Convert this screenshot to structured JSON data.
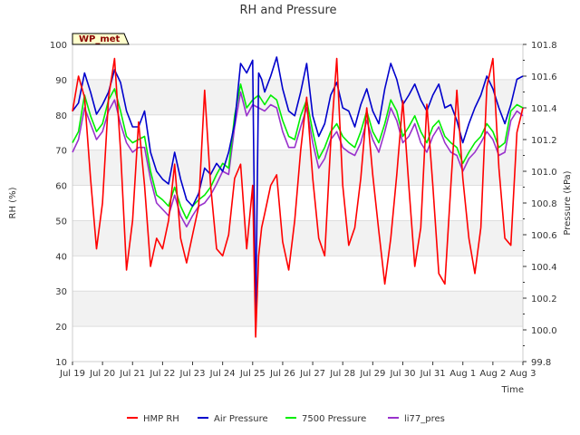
{
  "chart_data": {
    "type": "line",
    "title": "RH and Pressure",
    "xlabel": "Time",
    "ylabel": "RH (%)",
    "y2label": "Pressure (kPa)",
    "badge": "WP_met",
    "x_ticks": [
      "Jul 19",
      "Jul 20",
      "Jul 21",
      "Jul 22",
      "Jul 23",
      "Jul 24",
      "Jul 25",
      "Jul 26",
      "Jul 27",
      "Jul 28",
      "Jul 29",
      "Jul 30",
      "Jul 31",
      "Aug 1",
      "Aug 2",
      "Aug 3"
    ],
    "xlim": [
      0,
      15
    ],
    "ylim": [
      10,
      100
    ],
    "y_ticks": [
      10,
      20,
      30,
      40,
      50,
      60,
      70,
      80,
      90,
      100
    ],
    "y2lim": [
      99.8,
      101.8
    ],
    "y2_ticks": [
      99.8,
      100.0,
      100.2,
      100.4,
      100.6,
      100.8,
      101.0,
      101.2,
      101.4,
      101.6,
      101.8
    ],
    "bands": [
      [
        80,
        90
      ],
      [
        60,
        70
      ],
      [
        40,
        50
      ],
      [
        20,
        30
      ]
    ],
    "grid": true,
    "legend_position": "bottom",
    "colors": {
      "hmp_rh": "#ff0000",
      "air_pressure": "#0000cc",
      "p7500": "#00ee00",
      "li77": "#9932cc",
      "band": "#f2f2f2",
      "grid": "#dddddd",
      "badge_fill": "#ffffcc",
      "badge_text": "#8b0000"
    },
    "series": [
      {
        "name": "HMP RH",
        "color": "#ff0000",
        "axis": "left",
        "x": [
          0,
          0.2,
          0.4,
          0.6,
          0.8,
          1.0,
          1.2,
          1.4,
          1.6,
          1.8,
          2.0,
          2.2,
          2.4,
          2.6,
          2.8,
          3.0,
          3.2,
          3.4,
          3.6,
          3.8,
          4.0,
          4.2,
          4.4,
          4.6,
          4.8,
          5.0,
          5.2,
          5.4,
          5.6,
          5.8,
          6.0,
          6.1,
          6.2,
          6.3,
          6.4,
          6.6,
          6.8,
          7.0,
          7.2,
          7.4,
          7.6,
          7.8,
          8.0,
          8.2,
          8.4,
          8.6,
          8.8,
          9.0,
          9.2,
          9.4,
          9.6,
          9.8,
          10.0,
          10.2,
          10.4,
          10.6,
          10.8,
          11.0,
          11.2,
          11.4,
          11.6,
          11.8,
          12.0,
          12.2,
          12.4,
          12.6,
          12.8,
          13.0,
          13.2,
          13.4,
          13.6,
          13.8,
          14.0,
          14.2,
          14.4,
          14.6,
          14.8,
          15.0
        ],
        "y": [
          81,
          91,
          85,
          62,
          42,
          55,
          85,
          96,
          70,
          36,
          50,
          78,
          60,
          37,
          45,
          42,
          50,
          66,
          45,
          38,
          46,
          54,
          87,
          60,
          42,
          40,
          46,
          62,
          66,
          42,
          60,
          17,
          40,
          48,
          52,
          60,
          63,
          44,
          36,
          50,
          70,
          85,
          62,
          45,
          40,
          72,
          96,
          60,
          43,
          48,
          62,
          82,
          63,
          47,
          32,
          45,
          63,
          84,
          60,
          37,
          48,
          83,
          60,
          35,
          32,
          60,
          87,
          62,
          45,
          35,
          48,
          88,
          96,
          65,
          45,
          43,
          75,
          82
        ]
      },
      {
        "name": "Air Pressure",
        "color": "#0000cc",
        "axis": "right",
        "x": [
          0,
          0.2,
          0.4,
          0.6,
          0.8,
          1.0,
          1.2,
          1.4,
          1.6,
          1.8,
          2.0,
          2.2,
          2.4,
          2.6,
          2.8,
          3.0,
          3.2,
          3.4,
          3.6,
          3.8,
          4.0,
          4.2,
          4.4,
          4.6,
          4.8,
          5.0,
          5.2,
          5.4,
          5.6,
          5.8,
          6.0,
          6.1,
          6.2,
          6.3,
          6.4,
          6.6,
          6.8,
          7.0,
          7.2,
          7.4,
          7.6,
          7.8,
          8.0,
          8.2,
          8.4,
          8.6,
          8.8,
          9.0,
          9.2,
          9.4,
          9.6,
          9.8,
          10.0,
          10.2,
          10.4,
          10.6,
          10.8,
          11.0,
          11.2,
          11.4,
          11.6,
          11.8,
          12.0,
          12.2,
          12.4,
          12.6,
          12.8,
          13.0,
          13.2,
          13.4,
          13.6,
          13.8,
          14.0,
          14.2,
          14.4,
          14.6,
          14.8,
          15.0
        ],
        "y": [
          101.38,
          101.43,
          101.62,
          101.5,
          101.36,
          101.42,
          101.5,
          101.64,
          101.56,
          101.38,
          101.28,
          101.28,
          101.38,
          101.12,
          101.0,
          100.95,
          100.92,
          101.12,
          100.95,
          100.82,
          100.78,
          100.86,
          101.02,
          100.98,
          101.05,
          101.0,
          101.12,
          101.3,
          101.68,
          101.62,
          101.7,
          100.05,
          101.62,
          101.58,
          101.5,
          101.6,
          101.72,
          101.52,
          101.38,
          101.35,
          101.5,
          101.68,
          101.35,
          101.22,
          101.3,
          101.48,
          101.56,
          101.4,
          101.38,
          101.28,
          101.42,
          101.52,
          101.38,
          101.3,
          101.52,
          101.68,
          101.58,
          101.42,
          101.48,
          101.55,
          101.45,
          101.38,
          101.48,
          101.55,
          101.4,
          101.42,
          101.32,
          101.18,
          101.3,
          101.4,
          101.48,
          101.6,
          101.52,
          101.4,
          101.3,
          101.42,
          101.58,
          101.6
        ]
      },
      {
        "name": "7500 Pressure",
        "color": "#00ee00",
        "axis": "right",
        "x": [
          0,
          0.2,
          0.4,
          0.6,
          0.8,
          1.0,
          1.2,
          1.4,
          1.6,
          1.8,
          2.0,
          2.2,
          2.4,
          2.6,
          2.8,
          3.0,
          3.2,
          3.4,
          3.6,
          3.8,
          4.0,
          4.2,
          4.4,
          4.6,
          4.8,
          5.0,
          5.2,
          5.4,
          5.6,
          5.8,
          6.0,
          6.2,
          6.4,
          6.6,
          6.8,
          7.0,
          7.2,
          7.4,
          7.6,
          7.8,
          8.0,
          8.2,
          8.4,
          8.6,
          8.8,
          9.0,
          9.2,
          9.4,
          9.6,
          9.8,
          10.0,
          10.2,
          10.4,
          10.6,
          10.8,
          11.0,
          11.2,
          11.4,
          11.6,
          11.8,
          12.0,
          12.2,
          12.4,
          12.6,
          12.8,
          13.0,
          13.2,
          13.4,
          13.6,
          13.8,
          14.0,
          14.2,
          14.4,
          14.6,
          14.8,
          15.0
        ],
        "y": [
          101.18,
          101.25,
          101.48,
          101.35,
          101.25,
          101.3,
          101.45,
          101.52,
          101.38,
          101.22,
          101.18,
          101.2,
          101.22,
          101.0,
          100.85,
          100.82,
          100.78,
          100.9,
          100.78,
          100.7,
          100.78,
          100.82,
          100.85,
          100.9,
          100.98,
          101.05,
          101.02,
          101.35,
          101.55,
          101.4,
          101.45,
          101.48,
          101.42,
          101.48,
          101.45,
          101.32,
          101.22,
          101.2,
          101.35,
          101.45,
          101.25,
          101.08,
          101.15,
          101.25,
          101.3,
          101.22,
          101.18,
          101.15,
          101.25,
          101.38,
          101.25,
          101.18,
          101.3,
          101.45,
          101.38,
          101.22,
          101.28,
          101.35,
          101.25,
          101.18,
          101.28,
          101.32,
          101.22,
          101.18,
          101.15,
          101.05,
          101.12,
          101.18,
          101.22,
          101.3,
          101.25,
          101.15,
          101.18,
          101.38,
          101.42,
          101.4
        ]
      },
      {
        "name": "li77_pres",
        "color": "#9932cc",
        "axis": "right",
        "x": [
          0,
          0.2,
          0.4,
          0.6,
          0.8,
          1.0,
          1.2,
          1.4,
          1.6,
          1.8,
          2.0,
          2.2,
          2.4,
          2.6,
          2.8,
          3.0,
          3.2,
          3.4,
          3.6,
          3.8,
          4.0,
          4.2,
          4.4,
          4.6,
          4.8,
          5.0,
          5.2,
          5.4,
          5.6,
          5.8,
          6.0,
          6.2,
          6.4,
          6.6,
          6.8,
          7.0,
          7.2,
          7.4,
          7.6,
          7.8,
          8.0,
          8.2,
          8.4,
          8.6,
          8.8,
          9.0,
          9.2,
          9.4,
          9.6,
          9.8,
          10.0,
          10.2,
          10.4,
          10.6,
          10.8,
          11.0,
          11.2,
          11.4,
          11.6,
          11.8,
          12.0,
          12.2,
          12.4,
          12.6,
          12.8,
          13.0,
          13.2,
          13.4,
          13.6,
          13.8,
          14.0,
          14.2,
          14.4,
          14.6,
          14.8,
          15.0
        ],
        "y": [
          101.12,
          101.2,
          101.4,
          101.3,
          101.2,
          101.25,
          101.38,
          101.45,
          101.3,
          101.18,
          101.12,
          101.15,
          101.15,
          100.95,
          100.8,
          100.76,
          100.72,
          100.85,
          100.72,
          100.65,
          100.72,
          100.78,
          100.8,
          100.85,
          100.92,
          101.0,
          100.98,
          101.28,
          101.5,
          101.35,
          101.42,
          101.4,
          101.38,
          101.42,
          101.4,
          101.25,
          101.15,
          101.15,
          101.28,
          101.4,
          101.18,
          101.02,
          101.08,
          101.2,
          101.25,
          101.15,
          101.12,
          101.1,
          101.18,
          101.32,
          101.2,
          101.12,
          101.25,
          101.4,
          101.32,
          101.18,
          101.22,
          101.3,
          101.18,
          101.12,
          101.22,
          101.28,
          101.18,
          101.12,
          101.1,
          101.0,
          101.08,
          101.12,
          101.18,
          101.25,
          101.2,
          101.1,
          101.12,
          101.32,
          101.38,
          101.35
        ]
      }
    ]
  }
}
